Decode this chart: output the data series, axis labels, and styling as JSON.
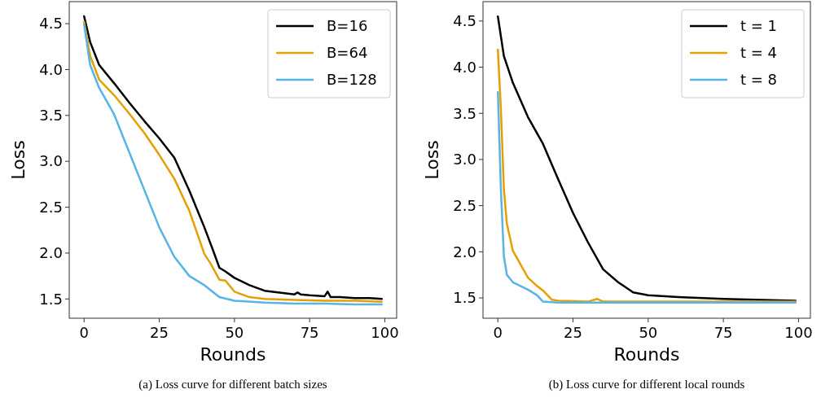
{
  "chart_data": [
    {
      "type": "line",
      "xlabel": "Rounds",
      "ylabel": "Loss",
      "annotations": [
        "(a)  Loss curve for different batch sizes"
      ],
      "xlim": [
        -4.95,
        103.95
      ],
      "ylim": [
        1.29,
        4.74
      ],
      "xticks": [
        0,
        25,
        50,
        75,
        100
      ],
      "yticks": [
        1.5,
        {
          "value": 2,
          "label": "2.0"
        },
        2.5,
        {
          "value": 3,
          "label": "3.0"
        },
        3.5,
        {
          "value": 4,
          "label": "4.0"
        },
        4.5
      ],
      "legend": "top right",
      "grid": false,
      "series": [
        {
          "name": "B=16",
          "color": "#000000",
          "x": [
            0,
            2,
            5,
            10,
            15,
            20,
            25,
            30,
            35,
            40,
            43,
            45,
            47,
            50,
            55,
            60,
            65,
            70,
            71,
            72,
            75,
            80,
            81,
            82,
            85,
            90,
            95,
            99
          ],
          "values": [
            4.58,
            4.3,
            4.05,
            3.85,
            3.64,
            3.44,
            3.25,
            3.04,
            2.68,
            2.28,
            2.02,
            1.84,
            1.8,
            1.73,
            1.65,
            1.59,
            1.57,
            1.55,
            1.57,
            1.55,
            1.54,
            1.53,
            1.58,
            1.52,
            1.52,
            1.51,
            1.51,
            1.5
          ]
        },
        {
          "name": "B=64",
          "color": "#e69f00",
          "x": [
            0,
            2,
            5,
            10,
            15,
            20,
            25,
            30,
            35,
            40,
            42,
            45,
            47,
            50,
            55,
            60,
            70,
            80,
            90,
            99
          ],
          "values": [
            4.52,
            4.15,
            3.89,
            3.72,
            3.52,
            3.31,
            3.07,
            2.81,
            2.46,
            1.99,
            1.89,
            1.71,
            1.7,
            1.58,
            1.52,
            1.5,
            1.49,
            1.48,
            1.48,
            1.47
          ]
        },
        {
          "name": "B=128",
          "color": "#56b4e9",
          "x": [
            0,
            2,
            5,
            10,
            15,
            20,
            25,
            30,
            35,
            40,
            45,
            50,
            60,
            70,
            80,
            90,
            99
          ],
          "values": [
            4.49,
            4.05,
            3.8,
            3.51,
            3.1,
            2.69,
            2.28,
            1.96,
            1.75,
            1.65,
            1.52,
            1.48,
            1.46,
            1.45,
            1.45,
            1.44,
            1.44
          ]
        }
      ]
    },
    {
      "type": "line",
      "xlabel": "Rounds",
      "ylabel": "Loss",
      "annotations": [
        "(b)  Loss curve for different local rounds"
      ],
      "xlim": [
        -4.95,
        103.95
      ],
      "ylim": [
        1.28,
        4.71
      ],
      "xticks": [
        0,
        25,
        50,
        75,
        100
      ],
      "yticks": [
        1.5,
        {
          "value": 2,
          "label": "2.0"
        },
        2.5,
        {
          "value": 3,
          "label": "3.0"
        },
        3.5,
        {
          "value": 4,
          "label": "4.0"
        },
        4.5
      ],
      "legend": "top right",
      "grid": false,
      "series": [
        {
          "name": "t = 1",
          "color": "#000000",
          "x": [
            0,
            2,
            5,
            10,
            15,
            20,
            25,
            30,
            35,
            40,
            45,
            50,
            60,
            75,
            99
          ],
          "values": [
            4.55,
            4.12,
            3.83,
            3.46,
            3.17,
            2.79,
            2.42,
            2.1,
            1.81,
            1.67,
            1.56,
            1.53,
            1.51,
            1.49,
            1.47
          ]
        },
        {
          "name": "t = 4",
          "color": "#e69f00",
          "x": [
            0,
            1,
            2,
            3,
            5,
            10,
            13,
            15,
            18,
            20,
            30,
            33,
            35,
            50,
            75,
            99
          ],
          "values": [
            4.19,
            3.55,
            2.68,
            2.3,
            2.01,
            1.72,
            1.63,
            1.58,
            1.48,
            1.47,
            1.46,
            1.49,
            1.46,
            1.46,
            1.46,
            1.46
          ]
        },
        {
          "name": "t = 8",
          "color": "#56b4e9",
          "x": [
            0,
            1,
            2,
            3,
            5,
            10,
            13,
            15,
            20,
            50,
            75,
            99
          ],
          "values": [
            3.73,
            2.68,
            1.95,
            1.75,
            1.67,
            1.59,
            1.53,
            1.46,
            1.45,
            1.45,
            1.45,
            1.45
          ]
        }
      ]
    }
  ]
}
